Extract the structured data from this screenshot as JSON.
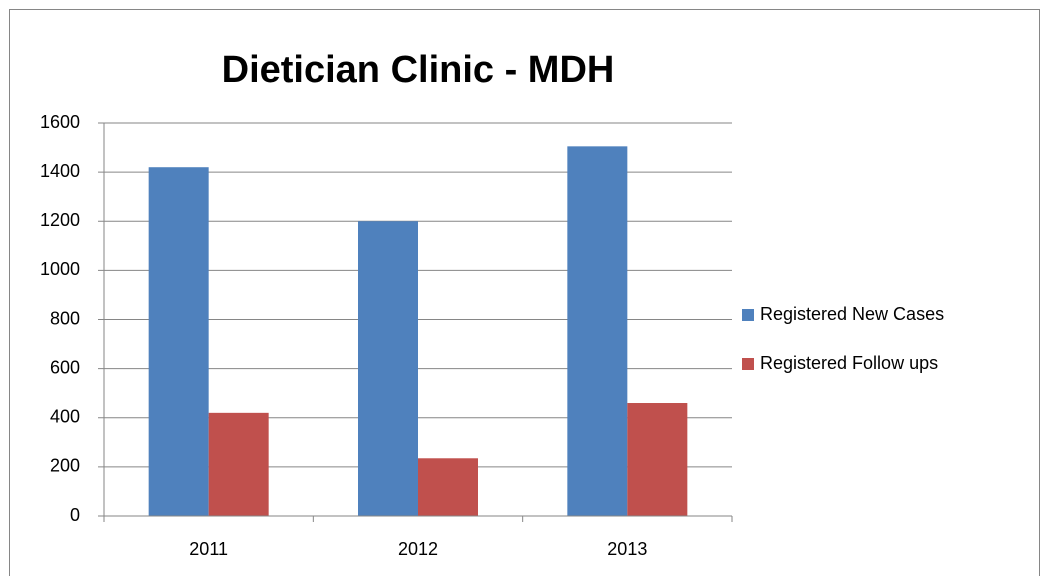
{
  "chart_data": {
    "type": "bar",
    "title": "Dietician Clinic - MDH",
    "categories": [
      "2011",
      "2012",
      "2013"
    ],
    "series": [
      {
        "name": "Registered New Cases",
        "color": "#4f81bd",
        "values": [
          1420,
          1200,
          1505
        ]
      },
      {
        "name": "Registered Follow ups",
        "color": "#c0504d",
        "values": [
          420,
          235,
          460
        ]
      }
    ],
    "ylim": [
      0,
      1600
    ],
    "yticks": [
      0,
      200,
      400,
      600,
      800,
      1000,
      1200,
      1400,
      1600
    ],
    "grid": true,
    "legend": "right"
  }
}
